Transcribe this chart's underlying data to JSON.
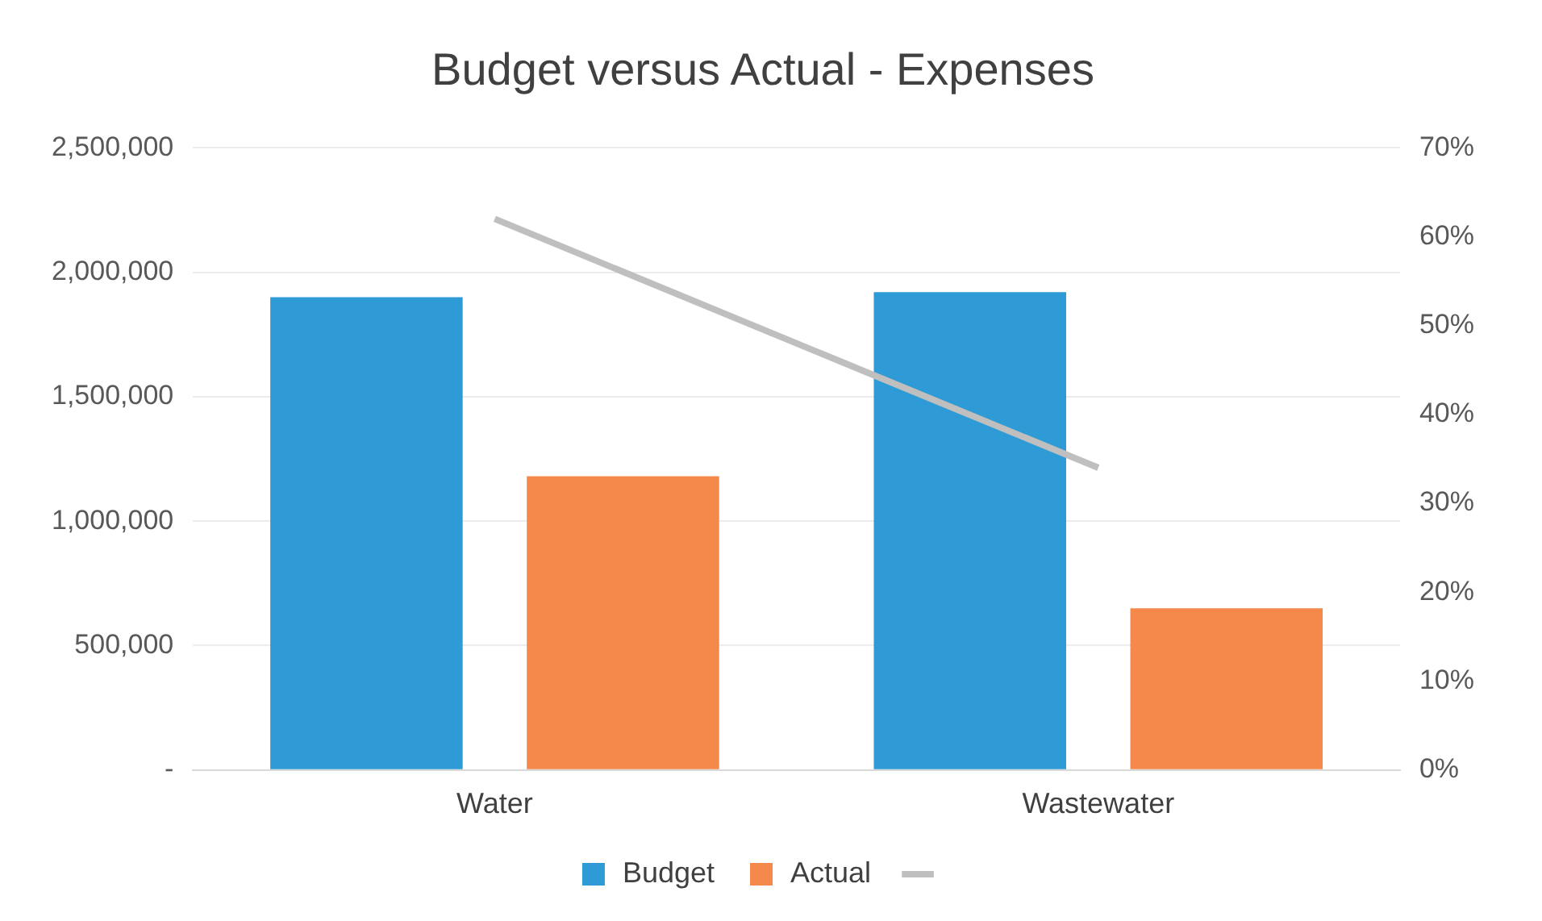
{
  "chart_data": {
    "type": "bar",
    "title": "Budget versus Actual - Expenses",
    "categories": [
      "Water",
      "Wastewater"
    ],
    "series": [
      {
        "name": "Budget",
        "color": "#2e9bd6",
        "values": [
          1900000,
          1920000
        ]
      },
      {
        "name": "Actual",
        "color": "#f5894b",
        "values": [
          1180000,
          650000
        ]
      },
      {
        "type": "line",
        "axis": "y2",
        "color": "#bfbfbf",
        "values": [
          62,
          34
        ]
      }
    ],
    "ylim": [
      0,
      2500000
    ],
    "yticks": [
      {
        "value": 0,
        "label": "-"
      },
      {
        "value": 500000,
        "label": "500,000"
      },
      {
        "value": 1000000,
        "label": "1,000,000"
      },
      {
        "value": 1500000,
        "label": "1,500,000"
      },
      {
        "value": 2000000,
        "label": "2,000,000"
      },
      {
        "value": 2500000,
        "label": "2,500,000"
      }
    ],
    "y2lim": [
      0,
      70
    ],
    "y2ticks": [
      {
        "value": 0,
        "label": "0%"
      },
      {
        "value": 10,
        "label": "10%"
      },
      {
        "value": 20,
        "label": "20%"
      },
      {
        "value": 30,
        "label": "30%"
      },
      {
        "value": 40,
        "label": "40%"
      },
      {
        "value": 50,
        "label": "50%"
      },
      {
        "value": 60,
        "label": "60%"
      },
      {
        "value": 70,
        "label": "70%"
      }
    ],
    "grid": "y",
    "legend": "bottom"
  }
}
